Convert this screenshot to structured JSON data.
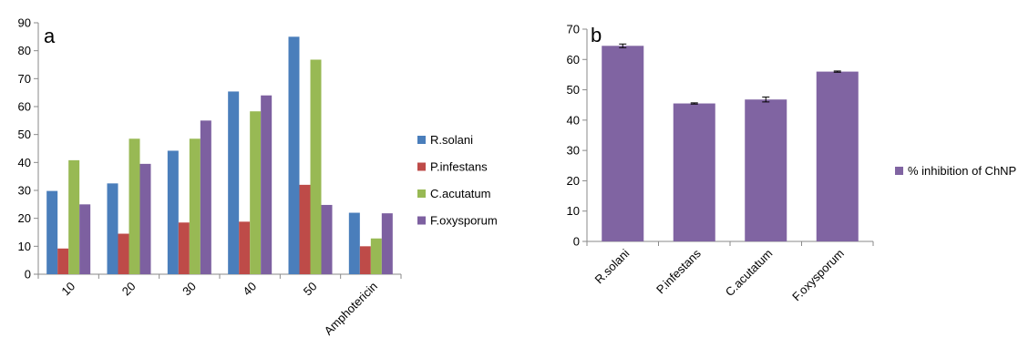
{
  "chart_data": [
    {
      "type": "bar",
      "panel_label": "a",
      "categories": [
        "10",
        "20",
        "30",
        "40",
        "50",
        "Amphotericin"
      ],
      "ylim": [
        0,
        90
      ],
      "yticks": [
        0,
        10,
        20,
        30,
        40,
        50,
        60,
        70,
        80,
        90
      ],
      "grid": false,
      "legend_position": "right",
      "series": [
        {
          "name": "R.solani",
          "color": "#4a7ebb",
          "values": [
            29.8,
            32.5,
            44.2,
            65.4,
            85.0,
            22.0
          ]
        },
        {
          "name": "P.infestans",
          "color": "#be4b48",
          "values": [
            9.2,
            14.5,
            18.5,
            18.8,
            32.0,
            10.0
          ]
        },
        {
          "name": "C.acutatum",
          "color": "#98b954",
          "values": [
            40.8,
            48.5,
            48.5,
            58.3,
            76.8,
            12.8
          ]
        },
        {
          "name": "F.oxysporum",
          "color": "#7d60a0",
          "values": [
            25.0,
            39.5,
            55.0,
            64.0,
            24.8,
            21.8
          ]
        }
      ]
    },
    {
      "type": "bar",
      "panel_label": "b",
      "categories": [
        "R.solani",
        "P.infestans",
        "C.acutatum",
        "F.oxysporum"
      ],
      "ylim": [
        0,
        70
      ],
      "yticks": [
        0,
        10,
        20,
        30,
        40,
        50,
        60,
        70
      ],
      "grid": false,
      "legend_position": "right",
      "series": [
        {
          "name": "% inhibition of ChNP",
          "color": "#8064a2",
          "values": [
            64.5,
            45.5,
            46.8,
            56.0
          ],
          "errors": [
            0.6,
            0.2,
            0.8,
            0.2
          ]
        }
      ]
    }
  ]
}
